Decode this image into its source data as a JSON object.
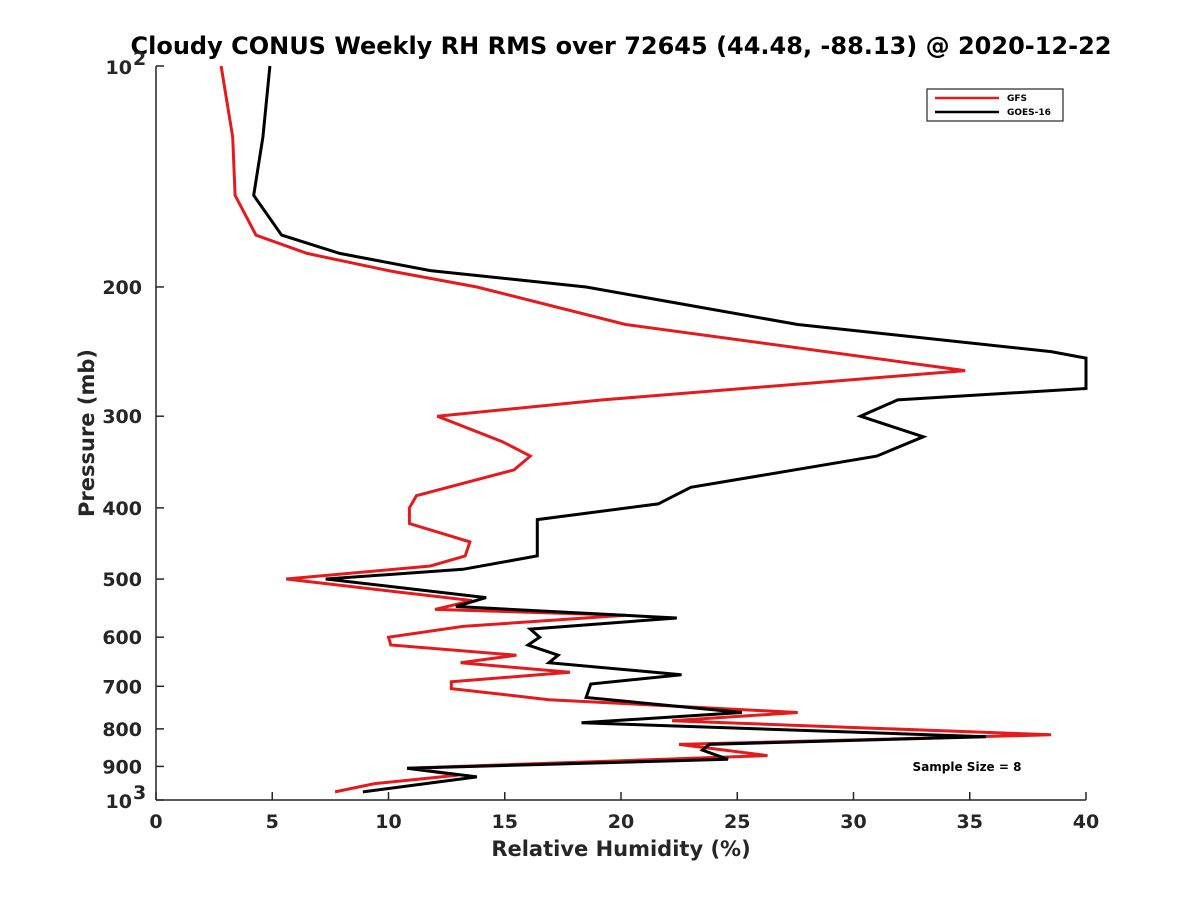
{
  "chart_data": {
    "type": "line",
    "title": "Cloudy CONUS Weekly RH RMS over 72645 (44.48, -88.13) @ 2020-12-22",
    "xlabel": "Relative Humidity (%)",
    "ylabel": "Pressure (mb)",
    "xlim": [
      0,
      40
    ],
    "ylim": [
      100,
      1000
    ],
    "y_scale": "log",
    "y_reversed": false,
    "grid": false,
    "legend_position": "top-right",
    "x_ticks": [
      0,
      5,
      10,
      15,
      20,
      25,
      30,
      35,
      40
    ],
    "y_ticks": [
      {
        "value": 100,
        "base": "10",
        "exp": "2"
      },
      {
        "value": 200,
        "label": "200"
      },
      {
        "value": 300,
        "label": "300"
      },
      {
        "value": 400,
        "label": "400"
      },
      {
        "value": 500,
        "label": "500"
      },
      {
        "value": 600,
        "label": "600"
      },
      {
        "value": 700,
        "label": "700"
      },
      {
        "value": 800,
        "label": "800"
      },
      {
        "value": 900,
        "label": "900"
      },
      {
        "value": 1000,
        "base": "10",
        "exp": "3"
      }
    ],
    "annotation": "Sample Size = 8",
    "series": [
      {
        "name": "GFS",
        "color": "#e41a1c",
        "points": [
          [
            2.8,
            100
          ],
          [
            3.3,
            125
          ],
          [
            3.4,
            150
          ],
          [
            4.3,
            170
          ],
          [
            6.5,
            180
          ],
          [
            10,
            190
          ],
          [
            13.8,
            200
          ],
          [
            20.2,
            225
          ],
          [
            34.8,
            260
          ],
          [
            19.2,
            285
          ],
          [
            12.1,
            300
          ],
          [
            14.9,
            325
          ],
          [
            16.1,
            340
          ],
          [
            15.4,
            355
          ],
          [
            11.2,
            385
          ],
          [
            10.9,
            400
          ],
          [
            10.9,
            420
          ],
          [
            13.5,
            445
          ],
          [
            13.3,
            465
          ],
          [
            11.8,
            480
          ],
          [
            5.6,
            500
          ],
          [
            13.6,
            535
          ],
          [
            12.0,
            550
          ],
          [
            20.2,
            560
          ],
          [
            13.2,
            580
          ],
          [
            10.0,
            600
          ],
          [
            10.1,
            615
          ],
          [
            15.5,
            635
          ],
          [
            13.1,
            650
          ],
          [
            17.8,
            670
          ],
          [
            12.7,
            690
          ],
          [
            12.7,
            705
          ],
          [
            16.9,
            730
          ],
          [
            27.6,
            760
          ],
          [
            22.2,
            780
          ],
          [
            38.5,
            815
          ],
          [
            22.5,
            840
          ],
          [
            26.3,
            870
          ],
          [
            10.8,
            905
          ],
          [
            13.0,
            925
          ],
          [
            9.4,
            950
          ],
          [
            7.7,
            975
          ]
        ]
      },
      {
        "name": "GOES-16",
        "color": "#000000",
        "points": [
          [
            4.9,
            100
          ],
          [
            4.6,
            125
          ],
          [
            4.2,
            150
          ],
          [
            5.4,
            170
          ],
          [
            7.9,
            180
          ],
          [
            11.8,
            190
          ],
          [
            18.5,
            200
          ],
          [
            27.6,
            225
          ],
          [
            38.5,
            245
          ],
          [
            40.0,
            250
          ],
          [
            40.0,
            275
          ],
          [
            31.9,
            285
          ],
          [
            30.3,
            300
          ],
          [
            33.0,
            320
          ],
          [
            31.0,
            340
          ],
          [
            23.0,
            375
          ],
          [
            21.6,
            395
          ],
          [
            16.4,
            415
          ],
          [
            16.4,
            465
          ],
          [
            13.2,
            485
          ],
          [
            7.3,
            500
          ],
          [
            14.2,
            530
          ],
          [
            12.9,
            545
          ],
          [
            22.4,
            565
          ],
          [
            16.1,
            585
          ],
          [
            16.5,
            600
          ],
          [
            16.0,
            615
          ],
          [
            17.3,
            635
          ],
          [
            16.9,
            650
          ],
          [
            22.6,
            675
          ],
          [
            18.7,
            695
          ],
          [
            18.5,
            725
          ],
          [
            25.2,
            760
          ],
          [
            18.3,
            785
          ],
          [
            35.7,
            820
          ],
          [
            23.8,
            840
          ],
          [
            23.5,
            855
          ],
          [
            24.6,
            880
          ],
          [
            10.8,
            905
          ],
          [
            13.8,
            930
          ],
          [
            8.9,
            975
          ]
        ]
      }
    ]
  }
}
